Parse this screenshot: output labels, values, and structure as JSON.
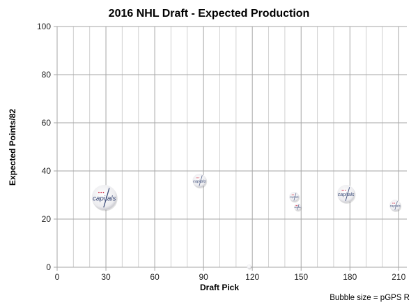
{
  "chart_data": {
    "type": "scatter",
    "subtype": "bubble",
    "title": "2016 NHL Draft - Expected Production",
    "xlabel": "Draft Pick",
    "ylabel": "Expected Points/82",
    "xlim": [
      0,
      215
    ],
    "ylim": [
      0,
      100
    ],
    "xticks": [
      0,
      30,
      60,
      90,
      120,
      150,
      180,
      210
    ],
    "yticks": [
      0,
      20,
      40,
      60,
      80,
      100
    ],
    "x_minor_grid_step": 10,
    "grid": true,
    "bubble_size_note": "Bubble size = pGPS R",
    "bubble_label": "capitals",
    "points": [
      {
        "x": 29,
        "y": 29.0,
        "size": 100
      },
      {
        "x": 87.5,
        "y": 36.0,
        "size": 30
      },
      {
        "x": 118,
        "y": 0.3,
        "size": 3
      },
      {
        "x": 145.7,
        "y": 29.3,
        "size": 15
      },
      {
        "x": 147.8,
        "y": 25.0,
        "size": 8
      },
      {
        "x": 177.6,
        "y": 30.5,
        "size": 50
      },
      {
        "x": 207.8,
        "y": 25.7,
        "size": 20
      }
    ],
    "colors": {
      "grid": "#d0d0d0",
      "grid_major": "#a6a6a6",
      "bubble": "#e8e8ec",
      "logo_text": "#3a4a78",
      "logo_red": "#c8102e"
    }
  }
}
